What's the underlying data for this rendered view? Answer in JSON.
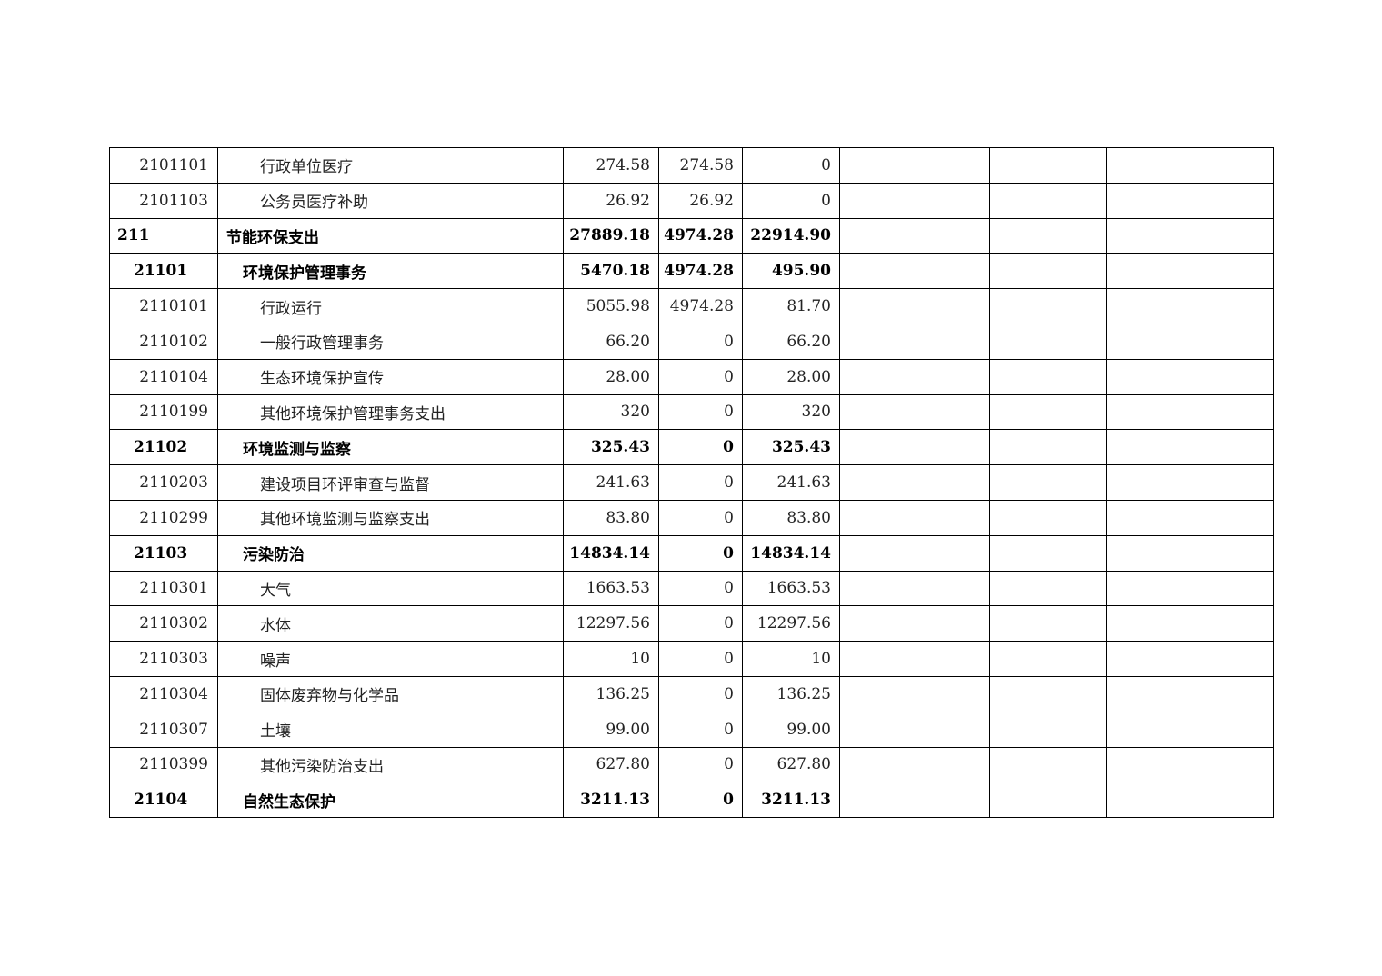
{
  "table": {
    "rows": [
      {
        "level": 3,
        "code": "2101101",
        "name": "行政单位医疗",
        "total": "274.58",
        "basic": "274.58",
        "project": "0"
      },
      {
        "level": 3,
        "code": "2101103",
        "name": "公务员医疗补助",
        "total": "26.92",
        "basic": "26.92",
        "project": "0"
      },
      {
        "level": 1,
        "code": "211",
        "name": "节能环保支出",
        "total": "27889.18",
        "basic": "4974.28",
        "project": "22914.90"
      },
      {
        "level": 2,
        "code": "21101",
        "name": "环境保护管理事务",
        "total": "5470.18",
        "basic": "4974.28",
        "project": "495.90"
      },
      {
        "level": 3,
        "code": "2110101",
        "name": "行政运行",
        "total": "5055.98",
        "basic": "4974.28",
        "project": "81.70"
      },
      {
        "level": 3,
        "code": "2110102",
        "name": "一般行政管理事务",
        "total": "66.20",
        "basic": "0",
        "project": "66.20"
      },
      {
        "level": 3,
        "code": "2110104",
        "name": "生态环境保护宣传",
        "total": "28.00",
        "basic": "0",
        "project": "28.00"
      },
      {
        "level": 3,
        "code": "2110199",
        "name": "其他环境保护管理事务支出",
        "total": "320",
        "basic": "0",
        "project": "320"
      },
      {
        "level": 2,
        "code": "21102",
        "name": "环境监测与监察",
        "total": "325.43",
        "basic": "0",
        "project": "325.43"
      },
      {
        "level": 3,
        "code": "2110203",
        "name": "建设项目环评审查与监督",
        "total": "241.63",
        "basic": "0",
        "project": "241.63"
      },
      {
        "level": 3,
        "code": "2110299",
        "name": "其他环境监测与监察支出",
        "total": "83.80",
        "basic": "0",
        "project": "83.80"
      },
      {
        "level": 2,
        "code": "21103",
        "name": "污染防治",
        "total": "14834.14",
        "basic": "0",
        "project": "14834.14"
      },
      {
        "level": 3,
        "code": "2110301",
        "name": "大气",
        "total": "1663.53",
        "basic": "0",
        "project": "1663.53"
      },
      {
        "level": 3,
        "code": "2110302",
        "name": "水体",
        "total": "12297.56",
        "basic": "0",
        "project": "12297.56"
      },
      {
        "level": 3,
        "code": "2110303",
        "name": "噪声",
        "total": "10",
        "basic": "0",
        "project": "10"
      },
      {
        "level": 3,
        "code": "2110304",
        "name": "固体废弃物与化学品",
        "total": "136.25",
        "basic": "0",
        "project": "136.25"
      },
      {
        "level": 3,
        "code": "2110307",
        "name": "土壤",
        "total": "99.00",
        "basic": "0",
        "project": "99.00"
      },
      {
        "level": 3,
        "code": "2110399",
        "name": "其他污染防治支出",
        "total": "627.80",
        "basic": "0",
        "project": "627.80"
      },
      {
        "level": 2,
        "code": "21104",
        "name": "自然生态保护",
        "total": "3211.13",
        "basic": "0",
        "project": "3211.13"
      }
    ]
  }
}
